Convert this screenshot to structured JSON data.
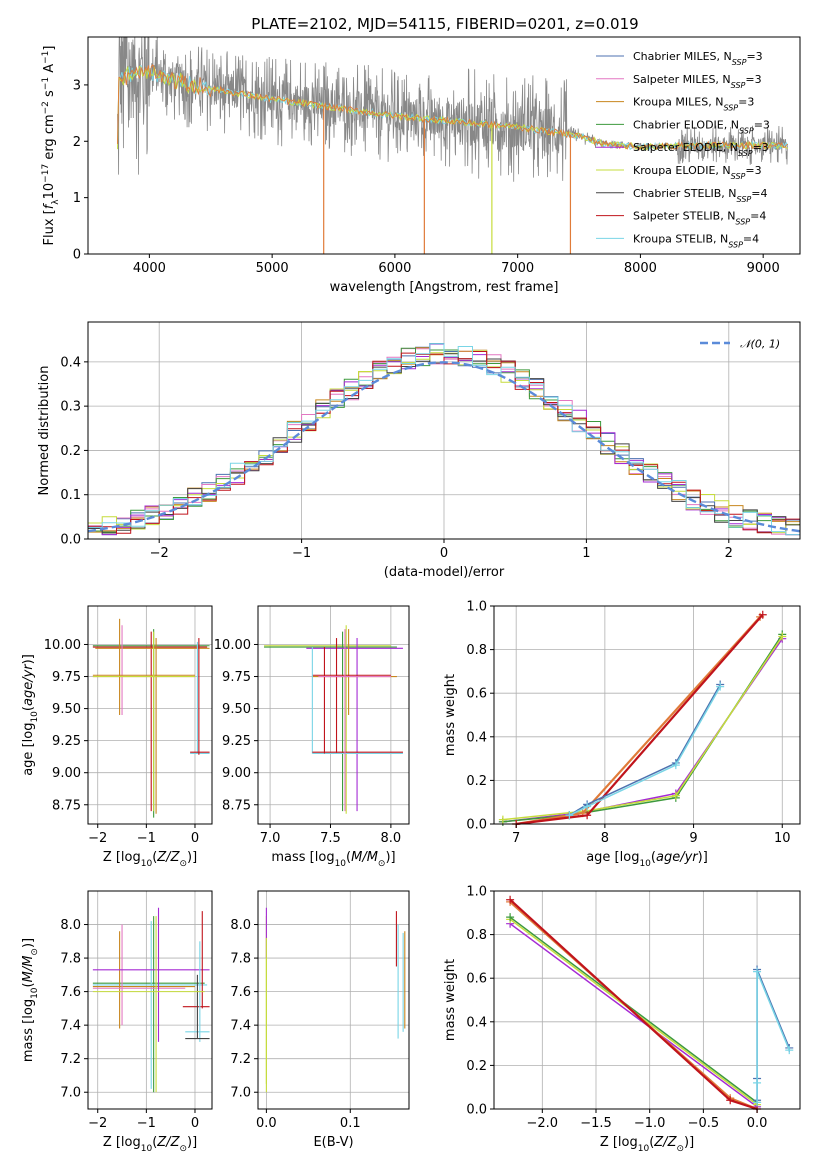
{
  "figure": {
    "title": "PLATE=2102, MJD=54115, FIBERID=0201, z=0.019"
  },
  "chart_data": [
    {
      "type": "line",
      "panel": "spectrum",
      "title": "PLATE=2102, MJD=54115, FIBERID=0201, z=0.019",
      "xlabel": "wavelength [Angstrom, rest frame]",
      "ylabel": "Flux [f_λ10^{-17} erg cm^{-2} s^{-1} A^{-1}]",
      "xlim": [
        3500,
        9300
      ],
      "ylim": [
        0,
        3.85
      ],
      "xticks": [
        4000,
        5000,
        6000,
        7000,
        8000,
        9000
      ],
      "yticks": [
        0,
        1,
        2,
        3
      ],
      "legend": "top-right",
      "legend_entries": [
        "Chabrier MILES, N_SSP=3",
        "Salpeter MILES, N_SSP=3",
        "Kroupa MILES, N_SSP=3",
        "Chabrier ELODIE, N_SSP=3",
        "Salpeter ELODIE, N_SSP=3",
        "Kroupa ELODIE, N_SSP=3",
        "Chabrier STELIB, N_SSP=4",
        "Salpeter STELIB, N_SSP=4",
        "Kroupa STELIB, N_SSP=4"
      ],
      "continuum_points": [
        [
          3750,
          3.1
        ],
        [
          4000,
          3.25
        ],
        [
          4300,
          3.0
        ],
        [
          4600,
          2.9
        ],
        [
          5000,
          2.75
        ],
        [
          5500,
          2.6
        ],
        [
          6000,
          2.45
        ],
        [
          6500,
          2.35
        ],
        [
          7000,
          2.25
        ],
        [
          7500,
          2.1
        ],
        [
          7700,
          1.95
        ],
        [
          8000,
          1.9
        ],
        [
          8500,
          1.93
        ],
        [
          9000,
          1.93
        ],
        [
          9200,
          1.92
        ]
      ]
    },
    {
      "type": "line",
      "panel": "residual_histogram",
      "xlabel": "(data-model)/error",
      "ylabel": "Normed distribution",
      "xlim": [
        -2.5,
        2.5
      ],
      "ylim": [
        0,
        0.49
      ],
      "xticks": [
        -2,
        -1,
        0,
        1,
        2
      ],
      "yticks": [
        0.0,
        0.1,
        0.2,
        0.3,
        0.4
      ],
      "grid": true,
      "legend": "top-right",
      "reference_curve": "𝒩(0, 1)"
    },
    {
      "type": "scatter",
      "panel": "age_vs_Z",
      "xlabel": "Z [log10(Z/Z⊙)]",
      "ylabel": "age  [log10(age/yr)]",
      "xlim": [
        -2.2,
        0.35
      ],
      "ylim": [
        8.6,
        10.3
      ],
      "xticks": [
        -2,
        -1,
        0
      ],
      "yticks": [
        8.75,
        9.0,
        9.25,
        9.5,
        9.75,
        10.0
      ],
      "grid": true
    },
    {
      "type": "scatter",
      "panel": "age_vs_mass",
      "xlabel": "mass [log10(M/M⊙)]",
      "ylabel": "",
      "xlim": [
        6.9,
        8.15
      ],
      "ylim": [
        8.6,
        10.3
      ],
      "xticks": [
        7.0,
        7.5,
        8.0
      ],
      "yticks": [
        8.75,
        9.0,
        9.25,
        9.5,
        9.75,
        10.0
      ],
      "grid": true
    },
    {
      "type": "line",
      "panel": "massweight_vs_age",
      "xlabel": "age  [log10(age/yr)]",
      "ylabel": "mass weight",
      "xlim": [
        6.75,
        10.2
      ],
      "ylim": [
        0,
        1.0
      ],
      "xticks": [
        7,
        8,
        9,
        10
      ],
      "yticks": [
        0.0,
        0.2,
        0.4,
        0.6,
        0.8,
        1.0
      ],
      "grid": true,
      "series": [
        {
          "x": [
            6.85,
            7.7,
            8.8,
            10.0
          ],
          "y": [
            0.01,
            0.05,
            0.14,
            0.85
          ]
        },
        {
          "x": [
            6.85,
            7.6,
            8.8,
            10.0
          ],
          "y": [
            0.01,
            0.04,
            0.12,
            0.87
          ]
        },
        {
          "x": [
            6.85,
            7.8,
            8.8,
            10.0
          ],
          "y": [
            0.02,
            0.06,
            0.13,
            0.86
          ]
        },
        {
          "x": [
            7.0,
            7.75,
            9.75
          ],
          "y": [
            0.0,
            0.05,
            0.95
          ]
        },
        {
          "x": [
            7.0,
            7.8,
            9.78
          ],
          "y": [
            0.0,
            0.04,
            0.96
          ]
        },
        {
          "x": [
            7.6,
            7.8,
            8.8,
            9.3
          ],
          "y": [
            0.04,
            0.09,
            0.28,
            0.64
          ]
        },
        {
          "x": [
            7.6,
            7.8,
            8.8,
            9.3
          ],
          "y": [
            0.04,
            0.08,
            0.27,
            0.63
          ]
        }
      ]
    },
    {
      "type": "scatter",
      "panel": "mass_vs_Z",
      "xlabel": "Z [log10(Z/Z⊙)]",
      "ylabel": "mass [log10(M/M⊙)]",
      "xlim": [
        -2.2,
        0.35
      ],
      "ylim": [
        6.9,
        8.2
      ],
      "xticks": [
        -2,
        -1,
        0
      ],
      "yticks": [
        7.0,
        7.2,
        7.4,
        7.6,
        7.8,
        8.0
      ],
      "grid": true
    },
    {
      "type": "scatter",
      "panel": "mass_vs_ebv",
      "xlabel": "E(B-V)",
      "ylabel": "",
      "xlim": [
        -0.01,
        0.17
      ],
      "ylim": [
        6.9,
        8.2
      ],
      "xticks": [
        0.0,
        0.1
      ],
      "yticks": [
        7.0,
        7.2,
        7.4,
        7.6,
        7.8,
        8.0
      ],
      "grid": true
    },
    {
      "type": "line",
      "panel": "massweight_vs_Z",
      "xlabel": "Z [log10(Z/Z⊙)]",
      "ylabel": "mass weight",
      "xlim": [
        -2.45,
        0.4
      ],
      "ylim": [
        0,
        1.0
      ],
      "xticks": [
        -2.0,
        -1.5,
        -1.0,
        -0.5,
        0.0
      ],
      "yticks": [
        0.0,
        0.2,
        0.4,
        0.6,
        0.8,
        1.0
      ],
      "grid": true,
      "series": [
        {
          "x": [
            -2.3,
            0.0
          ],
          "y": [
            0.85,
            0.01
          ]
        },
        {
          "x": [
            -2.3,
            0.0
          ],
          "y": [
            0.87,
            0.02
          ]
        },
        {
          "x": [
            -2.3,
            0.0
          ],
          "y": [
            0.88,
            0.03
          ]
        },
        {
          "x": [
            -2.3,
            -0.25,
            0.0
          ],
          "y": [
            0.95,
            0.05,
            0.0
          ]
        },
        {
          "x": [
            -2.3,
            -0.25,
            0.0
          ],
          "y": [
            0.96,
            0.04,
            0.0
          ]
        },
        {
          "x": [
            0.0,
            0.0,
            0.0,
            0.3
          ],
          "y": [
            0.04,
            0.14,
            0.64,
            0.28
          ]
        },
        {
          "x": [
            0.0,
            0.0,
            0.0,
            0.3
          ],
          "y": [
            0.03,
            0.12,
            0.63,
            0.27
          ]
        }
      ]
    }
  ],
  "colors": {
    "series": [
      "#4c72b0",
      "#e377c2",
      "#c8861e",
      "#3d9a3d",
      "#a52ad4",
      "#c6dc3c",
      "#444444",
      "#c0141c",
      "#79d5e6"
    ],
    "extra": [
      "#e07b39"
    ],
    "data": "#888888",
    "normal_curve": "#5b8bd9",
    "grid": "#b0b0b0"
  }
}
